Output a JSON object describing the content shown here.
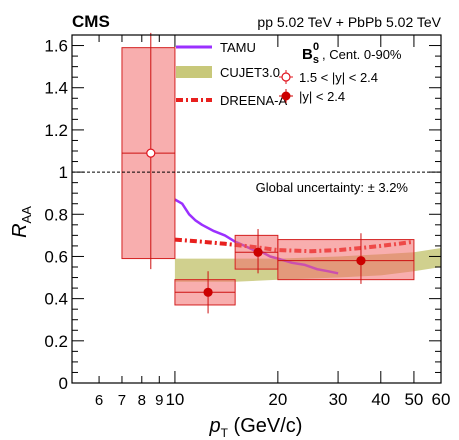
{
  "chart_data": {
    "type": "scatter",
    "experiment": "CMS",
    "collision": "pp 5.02 TeV + PbPb 5.02 TeV",
    "particle_label": {
      "main": "B",
      "sub": "s",
      "sup": "0",
      "centrality": ", Cent. 0-90%"
    },
    "global_uncertainty": "Global uncertainty: ± 3.2%",
    "xlabel": {
      "main": "p",
      "sub": "T",
      "unit": " (GeV/c)"
    },
    "ylabel": {
      "main": "R",
      "sub": "AA"
    },
    "x_scale": "log",
    "xlim": [
      5,
      60
    ],
    "ylim": [
      0,
      1.65
    ],
    "x_ticks": [
      {
        "value": 6,
        "label": "6"
      },
      {
        "value": 7,
        "label": "7"
      },
      {
        "value": 8,
        "label": "8"
      },
      {
        "value": 9,
        "label": "9"
      },
      {
        "value": 10,
        "label": "10"
      },
      {
        "value": 20,
        "label": "20"
      },
      {
        "value": 30,
        "label": "30"
      },
      {
        "value": 40,
        "label": "40"
      },
      {
        "value": 50,
        "label": "50"
      },
      {
        "value": 60,
        "label": "60"
      }
    ],
    "y_ticks": [
      {
        "value": 0,
        "label": "0"
      },
      {
        "value": 0.2,
        "label": "0.2"
      },
      {
        "value": 0.4,
        "label": "0.4"
      },
      {
        "value": 0.6,
        "label": "0.6"
      },
      {
        "value": 0.8,
        "label": "0.8"
      },
      {
        "value": 1.0,
        "label": "1"
      },
      {
        "value": 1.2,
        "label": "1.2"
      },
      {
        "value": 1.4,
        "label": "1.4"
      },
      {
        "value": 1.6,
        "label": "1.6"
      }
    ],
    "reference_line": 1.0,
    "data_series": [
      {
        "name": "1.5 < |y| < 2.4",
        "marker": "open-circle",
        "color": "#e0141e",
        "points": [
          {
            "x": 8.5,
            "y": 1.09,
            "x_lo": 7,
            "x_hi": 10,
            "stat_lo": 0.54,
            "stat_hi": 1.66,
            "syst_lo": 0.59,
            "syst_hi": 1.59
          }
        ]
      },
      {
        "name": "|y| < 2.4",
        "marker": "filled-circle",
        "color": "#cc0000",
        "points": [
          {
            "x": 12.5,
            "y": 0.43,
            "x_lo": 10,
            "x_hi": 15,
            "stat_lo": 0.33,
            "stat_hi": 0.53,
            "syst_lo": 0.37,
            "syst_hi": 0.49
          },
          {
            "x": 17.5,
            "y": 0.62,
            "x_lo": 15,
            "x_hi": 20,
            "stat_lo": 0.52,
            "stat_hi": 0.73,
            "syst_lo": 0.54,
            "syst_hi": 0.7
          },
          {
            "x": 35,
            "y": 0.58,
            "x_lo": 20,
            "x_hi": 50,
            "stat_lo": 0.47,
            "stat_hi": 0.71,
            "syst_lo": 0.49,
            "syst_hi": 0.68
          }
        ]
      }
    ],
    "models": [
      {
        "name": "TAMU",
        "style": "solid",
        "color": "#9b30ff",
        "points": [
          [
            10,
            0.87
          ],
          [
            10.5,
            0.85
          ],
          [
            11,
            0.8
          ],
          [
            11.5,
            0.77
          ],
          [
            12,
            0.75
          ],
          [
            13,
            0.72
          ],
          [
            14,
            0.7
          ],
          [
            15,
            0.67
          ],
          [
            16,
            0.65
          ],
          [
            17,
            0.63
          ],
          [
            18,
            0.62
          ],
          [
            19,
            0.6
          ],
          [
            20,
            0.59
          ],
          [
            22,
            0.57
          ],
          [
            24,
            0.56
          ],
          [
            26,
            0.54
          ],
          [
            28,
            0.53
          ],
          [
            30,
            0.52
          ]
        ]
      },
      {
        "name": "CUJET3.0",
        "style": "band",
        "color": "#c8c87a",
        "upper": [
          [
            10,
            0.59
          ],
          [
            15,
            0.59
          ],
          [
            20,
            0.59
          ],
          [
            30,
            0.6
          ],
          [
            40,
            0.61
          ],
          [
            50,
            0.62
          ],
          [
            60,
            0.64
          ]
        ],
        "lower": [
          [
            10,
            0.48
          ],
          [
            15,
            0.48
          ],
          [
            20,
            0.49
          ],
          [
            30,
            0.5
          ],
          [
            40,
            0.51
          ],
          [
            50,
            0.53
          ],
          [
            60,
            0.55
          ]
        ]
      },
      {
        "name": "DREENA-A",
        "style": "dash-dot",
        "color": "#e8201e",
        "points": [
          [
            10,
            0.68
          ],
          [
            12,
            0.67
          ],
          [
            14,
            0.66
          ],
          [
            16,
            0.65
          ],
          [
            18,
            0.64
          ],
          [
            20,
            0.63
          ],
          [
            25,
            0.625
          ],
          [
            30,
            0.63
          ],
          [
            35,
            0.64
          ],
          [
            40,
            0.65
          ],
          [
            45,
            0.66
          ],
          [
            50,
            0.67
          ]
        ]
      }
    ]
  }
}
